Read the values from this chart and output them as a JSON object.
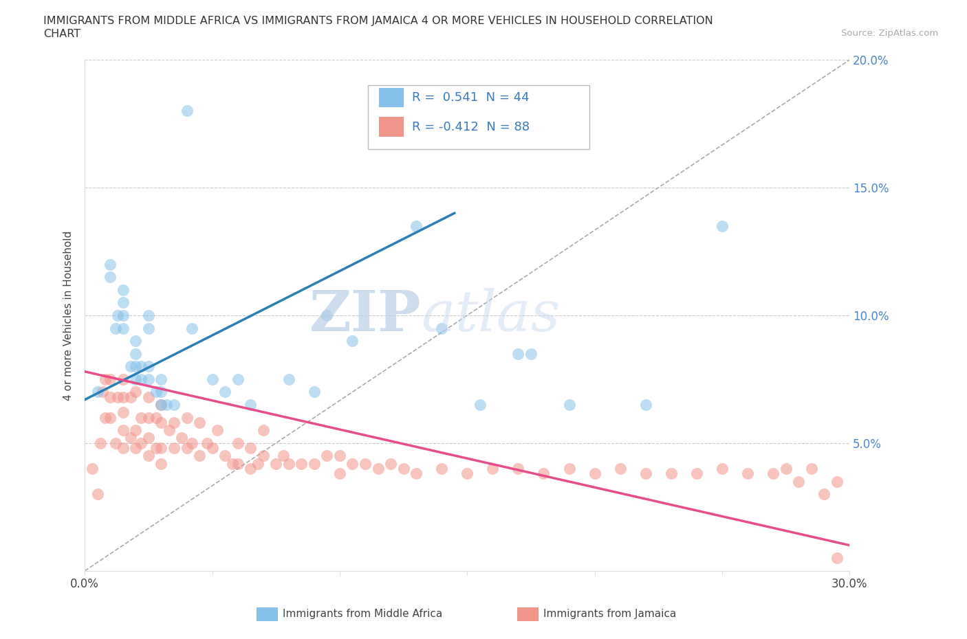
{
  "title_line1": "IMMIGRANTS FROM MIDDLE AFRICA VS IMMIGRANTS FROM JAMAICA 4 OR MORE VEHICLES IN HOUSEHOLD CORRELATION",
  "title_line2": "CHART",
  "source": "Source: ZipAtlas.com",
  "ylabel": "4 or more Vehicles in Household",
  "x_min": 0.0,
  "x_max": 0.3,
  "y_min": 0.0,
  "y_max": 0.2,
  "x_ticks": [
    0.0,
    0.05,
    0.1,
    0.15,
    0.2,
    0.25,
    0.3
  ],
  "y_ticks": [
    0.0,
    0.05,
    0.1,
    0.15,
    0.2
  ],
  "color_blue": "#85c1e9",
  "color_pink": "#f1948a",
  "color_blue_line": "#2980b9",
  "color_pink_line": "#e74c8b",
  "color_dashed": "#aaaaaa",
  "R_blue": 0.541,
  "N_blue": 44,
  "R_pink": -0.412,
  "N_pink": 88,
  "legend_label_blue": "Immigrants from Middle Africa",
  "legend_label_pink": "Immigrants from Jamaica",
  "watermark_zip": "ZIP",
  "watermark_atlas": "atlas",
  "blue_scatter_x": [
    0.005,
    0.01,
    0.01,
    0.012,
    0.013,
    0.015,
    0.015,
    0.015,
    0.015,
    0.018,
    0.02,
    0.02,
    0.02,
    0.02,
    0.022,
    0.022,
    0.025,
    0.025,
    0.025,
    0.025,
    0.028,
    0.03,
    0.03,
    0.03,
    0.032,
    0.035,
    0.04,
    0.042,
    0.05,
    0.055,
    0.06,
    0.065,
    0.08,
    0.09,
    0.095,
    0.105,
    0.13,
    0.14,
    0.155,
    0.17,
    0.175,
    0.19,
    0.22,
    0.25
  ],
  "blue_scatter_y": [
    0.07,
    0.115,
    0.12,
    0.095,
    0.1,
    0.095,
    0.1,
    0.105,
    0.11,
    0.08,
    0.075,
    0.08,
    0.085,
    0.09,
    0.075,
    0.08,
    0.075,
    0.08,
    0.095,
    0.1,
    0.07,
    0.065,
    0.07,
    0.075,
    0.065,
    0.065,
    0.18,
    0.095,
    0.075,
    0.07,
    0.075,
    0.065,
    0.075,
    0.07,
    0.1,
    0.09,
    0.135,
    0.095,
    0.065,
    0.085,
    0.085,
    0.065,
    0.065,
    0.135
  ],
  "pink_scatter_x": [
    0.003,
    0.005,
    0.006,
    0.007,
    0.008,
    0.008,
    0.01,
    0.01,
    0.01,
    0.012,
    0.013,
    0.015,
    0.015,
    0.015,
    0.015,
    0.015,
    0.018,
    0.018,
    0.02,
    0.02,
    0.02,
    0.022,
    0.022,
    0.025,
    0.025,
    0.025,
    0.025,
    0.028,
    0.028,
    0.03,
    0.03,
    0.03,
    0.03,
    0.033,
    0.035,
    0.035,
    0.038,
    0.04,
    0.04,
    0.042,
    0.045,
    0.045,
    0.048,
    0.05,
    0.052,
    0.055,
    0.058,
    0.06,
    0.06,
    0.065,
    0.065,
    0.068,
    0.07,
    0.07,
    0.075,
    0.078,
    0.08,
    0.085,
    0.09,
    0.095,
    0.1,
    0.1,
    0.105,
    0.11,
    0.115,
    0.12,
    0.125,
    0.13,
    0.14,
    0.15,
    0.16,
    0.17,
    0.18,
    0.19,
    0.2,
    0.21,
    0.22,
    0.23,
    0.24,
    0.25,
    0.26,
    0.27,
    0.275,
    0.28,
    0.285,
    0.29,
    0.295,
    0.295
  ],
  "pink_scatter_y": [
    0.04,
    0.03,
    0.05,
    0.07,
    0.06,
    0.075,
    0.06,
    0.068,
    0.075,
    0.05,
    0.068,
    0.048,
    0.055,
    0.062,
    0.068,
    0.075,
    0.052,
    0.068,
    0.048,
    0.055,
    0.07,
    0.05,
    0.06,
    0.045,
    0.052,
    0.06,
    0.068,
    0.048,
    0.06,
    0.042,
    0.048,
    0.058,
    0.065,
    0.055,
    0.048,
    0.058,
    0.052,
    0.048,
    0.06,
    0.05,
    0.045,
    0.058,
    0.05,
    0.048,
    0.055,
    0.045,
    0.042,
    0.042,
    0.05,
    0.04,
    0.048,
    0.042,
    0.045,
    0.055,
    0.042,
    0.045,
    0.042,
    0.042,
    0.042,
    0.045,
    0.038,
    0.045,
    0.042,
    0.042,
    0.04,
    0.042,
    0.04,
    0.038,
    0.04,
    0.038,
    0.04,
    0.04,
    0.038,
    0.04,
    0.038,
    0.04,
    0.038,
    0.038,
    0.038,
    0.04,
    0.038,
    0.038,
    0.04,
    0.035,
    0.04,
    0.03,
    0.005,
    0.035
  ],
  "blue_line_x": [
    0.0,
    0.145
  ],
  "blue_line_y": [
    0.067,
    0.14
  ],
  "pink_line_x": [
    0.0,
    0.3
  ],
  "pink_line_y": [
    0.078,
    0.01
  ]
}
